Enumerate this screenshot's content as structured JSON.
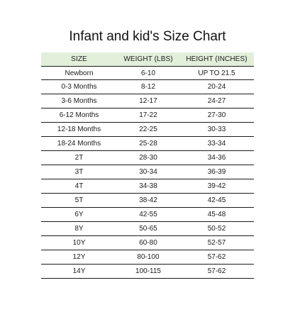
{
  "title": "Infant and kid's Size Chart",
  "table": {
    "headers": [
      "SIZE",
      "WEIGHT (LBS)",
      "HEIGHT (INCHES)"
    ],
    "rows": [
      [
        "Newborn",
        "6-10",
        "UP TO 21.5"
      ],
      [
        "0-3 Months",
        "8-12",
        "20-24"
      ],
      [
        "3-6 Months",
        "12-17",
        "24-27"
      ],
      [
        "6-12 Months",
        "17-22",
        "27-30"
      ],
      [
        "12-18 Months",
        "22-25",
        "30-33"
      ],
      [
        "18-24 Months",
        "25-28",
        "33-34"
      ],
      [
        "2T",
        "28-30",
        "34-36"
      ],
      [
        "3T",
        "30-34",
        "36-39"
      ],
      [
        "4T",
        "34-38",
        "39-42"
      ],
      [
        "5T",
        "38-42",
        "42-45"
      ],
      [
        "6Y",
        "42-55",
        "45-48"
      ],
      [
        "8Y",
        "50-65",
        "50-52"
      ],
      [
        "10Y",
        "60-80",
        "52-57"
      ],
      [
        "12Y",
        "80-100",
        "57-62"
      ],
      [
        "14Y",
        "100-115",
        "57-62"
      ]
    ]
  },
  "colors": {
    "header_background": "#e2efda",
    "rule": "#1a1a1a"
  }
}
